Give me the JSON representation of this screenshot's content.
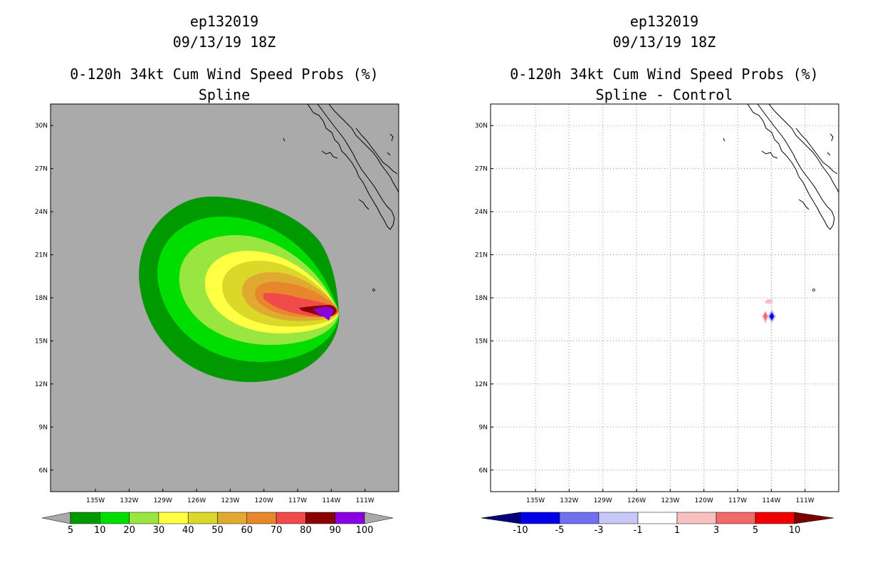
{
  "left_panel": {
    "storm_id": "ep132019",
    "datetime": "09/13/19 18Z",
    "title": "0-120h 34kt Cum Wind Speed Probs (%)",
    "subtitle": "Spline",
    "colorbar_labels": [
      "5",
      "10",
      "20",
      "30",
      "40",
      "50",
      "60",
      "70",
      "80",
      "90",
      "100"
    ],
    "colorbar_colors": [
      "#009900",
      "#00dd00",
      "#99e640",
      "#ffff44",
      "#dcd82a",
      "#e0aa30",
      "#e8862c",
      "#f04a4a",
      "#8a0000",
      "#8a00e0"
    ]
  },
  "right_panel": {
    "storm_id": "ep132019",
    "datetime": "09/13/19 18Z",
    "title": "0-120h 34kt Cum Wind Speed Probs (%)",
    "subtitle": "Spline - Control",
    "colorbar_labels": [
      "-10",
      "-5",
      "-3",
      "-1",
      "1",
      "3",
      "5",
      "10"
    ],
    "colorbar_colors": [
      "#0000e8",
      "#7070f0",
      "#c8c8f8",
      "#ffffff",
      "#f8c0c0",
      "#f06a6a",
      "#f00000"
    ]
  },
  "chart_data": [
    {
      "type": "contour-map",
      "title": "0-120h 34kt Cum Wind Speed Probs (%)",
      "subtitle": "Spline",
      "storm": "ep132019",
      "valid": "09/13/19 18Z",
      "x_ticks": [
        "135W",
        "132W",
        "129W",
        "126W",
        "123W",
        "120W",
        "117W",
        "114W",
        "111W"
      ],
      "y_ticks": [
        "30N",
        "27N",
        "24N",
        "21N",
        "18N",
        "15N",
        "12N",
        "9N",
        "6N"
      ],
      "xlim_lon": [
        -139,
        -108
      ],
      "ylim_lat": [
        4.5,
        31.5
      ],
      "levels": [
        5,
        10,
        20,
        30,
        40,
        50,
        60,
        70,
        80,
        90,
        100
      ],
      "storm_center": {
        "lon": -114.4,
        "lat": 17.4
      }
    },
    {
      "type": "contour-map",
      "title": "0-120h 34kt Cum Wind Speed Probs (%)",
      "subtitle": "Spline - Control",
      "storm": "ep132019",
      "valid": "09/13/19 18Z",
      "x_ticks": [
        "135W",
        "132W",
        "129W",
        "126W",
        "123W",
        "120W",
        "117W",
        "114W",
        "111W"
      ],
      "y_ticks": [
        "30N",
        "27N",
        "24N",
        "21N",
        "18N",
        "15N",
        "12N",
        "9N",
        "6N"
      ],
      "xlim_lon": [
        -139,
        -108
      ],
      "ylim_lat": [
        4.5,
        31.5
      ],
      "levels": [
        -10,
        -5,
        -3,
        -1,
        1,
        3,
        5,
        10
      ],
      "difference_features": [
        {
          "lon": -115.2,
          "lat": 17.0,
          "sign": "positive"
        },
        {
          "lon": -114.7,
          "lat": 17.0,
          "sign": "negative"
        },
        {
          "lon": -114.9,
          "lat": 18.1,
          "sign": "positive"
        }
      ]
    }
  ]
}
